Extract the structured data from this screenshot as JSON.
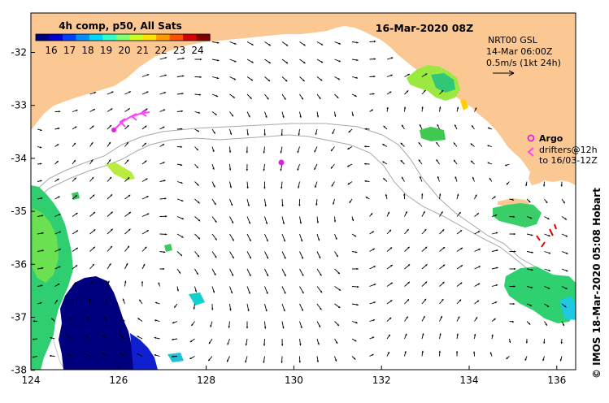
{
  "map": {
    "colorbar_title": "4h comp, p50, All Sats",
    "colorbar_ticks": [
      "16",
      "17",
      "18",
      "19",
      "20",
      "21",
      "22",
      "23",
      "24"
    ],
    "colorbar_colors": [
      "#00007f",
      "#0000d0",
      "#0040ff",
      "#0090ff",
      "#00d8ff",
      "#30ffc8",
      "#80ff70",
      "#c8ff20",
      "#ffe000",
      "#ff9a00",
      "#ff5000",
      "#d80000",
      "#800000"
    ],
    "date_title": "16-Mar-2020 08Z",
    "current_info": {
      "line1": "NRT00 GSL",
      "line2": "14-Mar 06:00Z",
      "line3": "0.5m/s (1kt 24h)"
    },
    "legend": {
      "argo": "Argo",
      "drifters_line1": "drifters@12h",
      "drifters_line2": "to 16/03-12Z"
    },
    "credit": "©  IMOS 18-Mar-2020 05:08 Hobart",
    "lat_labels": [
      "-32",
      "-33",
      "-34",
      "-35",
      "-36",
      "-37",
      "-38"
    ],
    "lon_labels": [
      "124",
      "126",
      "128",
      "130",
      "132",
      "134",
      "136"
    ],
    "colors": {
      "land": "#fbc793",
      "ocean": "#ffffff",
      "frame": "#000000",
      "contour": "#a8a8a8",
      "argo": "#e020e0",
      "drifter_east": "#ff40ff",
      "drifter_south": "#e00000"
    }
  }
}
